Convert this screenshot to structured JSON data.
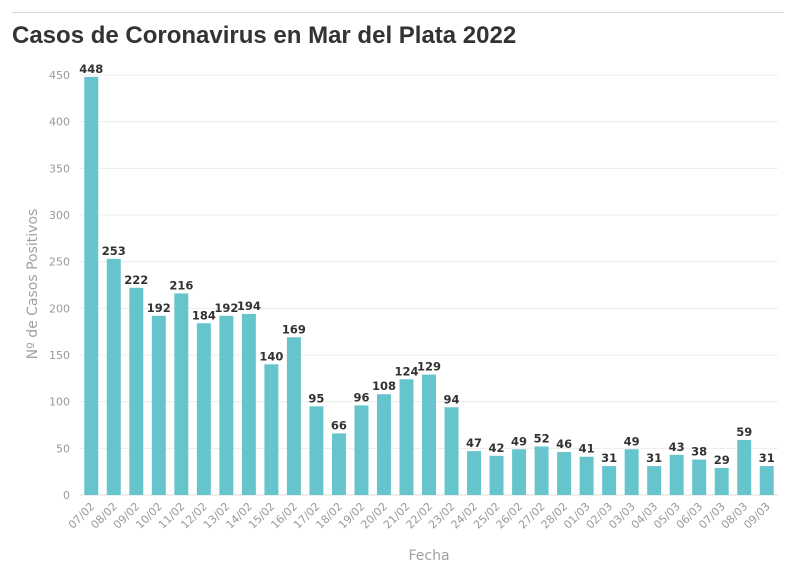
{
  "title": "Casos de Coronavirus en Mar del Plata 2022",
  "chart_data": {
    "type": "bar",
    "title": "Casos de Coronavirus en Mar del Plata 2022",
    "xlabel": "Fecha",
    "ylabel": "Nº de Casos Positivos",
    "ylim": [
      0,
      450
    ],
    "yticks": [
      0,
      50,
      100,
      150,
      200,
      250,
      300,
      350,
      400,
      450
    ],
    "grid": true,
    "bar_color": "#66c5cc",
    "categories": [
      "07/02",
      "08/02",
      "09/02",
      "10/02",
      "11/02",
      "12/02",
      "13/02",
      "14/02",
      "15/02",
      "16/02",
      "17/02",
      "18/02",
      "19/02",
      "20/02",
      "21/02",
      "22/02",
      "23/02",
      "24/02",
      "25/02",
      "26/02",
      "27/02",
      "28/02",
      "01/03",
      "02/03",
      "03/03",
      "04/03",
      "05/03",
      "06/03",
      "07/03",
      "08/03",
      "09/03"
    ],
    "values": [
      448,
      253,
      222,
      192,
      216,
      184,
      192,
      194,
      140,
      169,
      95,
      66,
      96,
      108,
      124,
      129,
      94,
      47,
      42,
      49,
      52,
      46,
      41,
      31,
      49,
      31,
      43,
      38,
      29,
      59,
      31
    ]
  }
}
